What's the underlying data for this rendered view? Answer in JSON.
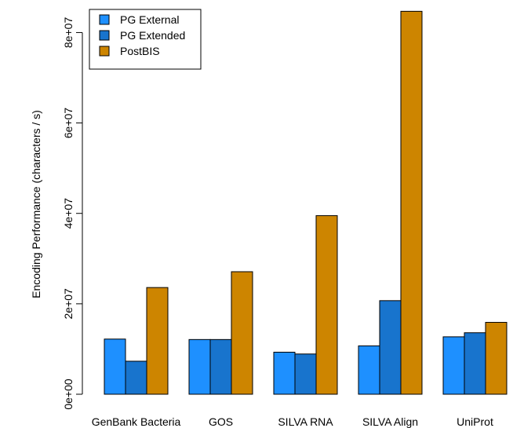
{
  "chart_data": {
    "type": "bar",
    "title": "",
    "xlabel": "",
    "ylabel": "Encoding Performance (characters / s)",
    "categories": [
      "GenBank Bacteria",
      "GOS",
      "SILVA RNA",
      "SILVA Align",
      "UniProt"
    ],
    "series": [
      {
        "name": "PG External",
        "color": "#1e90ff",
        "values": [
          12200000,
          12100000,
          9300000,
          10700000,
          12700000
        ]
      },
      {
        "name": "PG Extended",
        "color": "#1874cd",
        "values": [
          7300000,
          12100000,
          8900000,
          20700000,
          13600000
        ]
      },
      {
        "name": "PostBIS",
        "color": "#cd8500",
        "values": [
          23600000,
          27100000,
          39500000,
          84700000,
          15900000
        ]
      }
    ],
    "yticks": [
      "0e+00",
      "2e+07",
      "4e+07",
      "6e+07",
      "8e+07"
    ],
    "ytick_values": [
      0,
      20000000,
      40000000,
      60000000,
      80000000
    ],
    "ylim": [
      0,
      86000000
    ],
    "legend_placement": "top-left",
    "grid": false
  }
}
